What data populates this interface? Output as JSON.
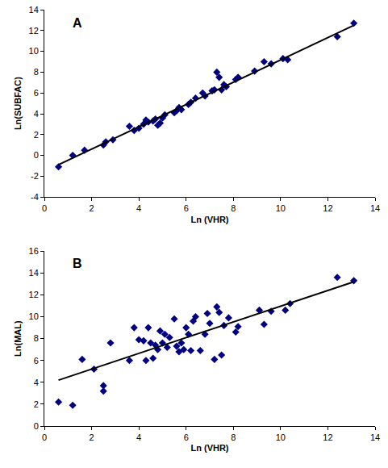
{
  "chart_data": [
    {
      "type": "scatter",
      "title": "A",
      "x_label": "Ln (VHR)",
      "y_label": "Ln(SUBFAC)",
      "xlim": [
        0,
        14
      ],
      "xticks": [
        0,
        2,
        4,
        6,
        8,
        10,
        12,
        14
      ],
      "ylim": [
        -4,
        14
      ],
      "yticks": [
        -4,
        -2,
        0,
        2,
        4,
        6,
        8,
        10,
        12,
        14
      ],
      "grid": false,
      "series": [
        {
          "type": "scatter",
          "marker": "diamond",
          "color": "#000080",
          "x": [
            0.6,
            1.2,
            1.7,
            2.5,
            2.6,
            2.9,
            3.6,
            3.8,
            4.0,
            4.2,
            4.3,
            4.4,
            4.6,
            4.7,
            4.8,
            4.9,
            5.0,
            5.1,
            5.5,
            5.6,
            5.7,
            5.8,
            6.1,
            6.2,
            6.4,
            6.7,
            6.8,
            7.1,
            7.2,
            7.3,
            7.4,
            7.5,
            7.6,
            7.7,
            8.1,
            8.2,
            8.9,
            9.3,
            9.6,
            10.1,
            10.3,
            12.4,
            13.1
          ],
          "values": [
            -1.1,
            0.0,
            0.5,
            1.0,
            1.3,
            1.5,
            2.8,
            2.4,
            2.6,
            3.0,
            3.4,
            3.2,
            3.3,
            3.5,
            2.9,
            3.1,
            3.6,
            3.9,
            4.1,
            4.3,
            4.6,
            4.4,
            4.9,
            5.1,
            5.5,
            6.0,
            5.7,
            6.2,
            6.3,
            8.0,
            7.5,
            6.3,
            6.8,
            6.6,
            7.3,
            7.5,
            8.1,
            9.0,
            8.8,
            9.3,
            9.2,
            11.4,
            12.7
          ]
        },
        {
          "type": "line",
          "line_style": "solid",
          "color": "#000000",
          "x": [
            0.6,
            13.1
          ],
          "values": [
            -0.9,
            12.5
          ]
        }
      ]
    },
    {
      "type": "scatter",
      "title": "B",
      "x_label": "Ln (VHR)",
      "y_label": "Ln(MAL)",
      "xlim": [
        0,
        14
      ],
      "xticks": [
        0,
        2,
        4,
        6,
        8,
        10,
        12,
        14
      ],
      "ylim": [
        0,
        16
      ],
      "yticks": [
        0,
        2,
        4,
        6,
        8,
        10,
        12,
        14,
        16
      ],
      "grid": false,
      "series": [
        {
          "type": "scatter",
          "marker": "diamond",
          "color": "#000080",
          "x": [
            0.6,
            1.2,
            1.6,
            2.1,
            2.5,
            2.5,
            2.8,
            3.6,
            3.8,
            4.0,
            4.2,
            4.3,
            4.4,
            4.5,
            4.6,
            4.7,
            4.8,
            4.9,
            5.0,
            5.1,
            5.2,
            5.3,
            5.5,
            5.6,
            5.7,
            5.8,
            5.9,
            6.0,
            6.1,
            6.2,
            6.3,
            6.4,
            6.6,
            6.8,
            6.9,
            7.0,
            7.2,
            7.3,
            7.4,
            7.5,
            7.6,
            7.8,
            8.1,
            8.2,
            9.1,
            9.3,
            9.6,
            10.2,
            10.4,
            12.4,
            13.1
          ],
          "values": [
            2.2,
            1.9,
            6.1,
            5.2,
            3.7,
            3.2,
            7.6,
            6.0,
            9.0,
            7.9,
            7.8,
            6.0,
            9.0,
            7.6,
            6.2,
            7.4,
            7.0,
            8.7,
            7.6,
            8.4,
            7.2,
            8.1,
            9.8,
            7.3,
            6.8,
            7.6,
            7.0,
            9.0,
            8.4,
            6.9,
            9.6,
            10.0,
            6.9,
            8.4,
            10.3,
            9.4,
            6.1,
            10.9,
            10.4,
            6.5,
            9.2,
            9.9,
            8.6,
            9.1,
            10.6,
            9.3,
            10.5,
            10.6,
            11.2,
            13.6,
            13.3
          ]
        },
        {
          "type": "line",
          "line_style": "solid",
          "color": "#000000",
          "x": [
            0.6,
            13.1
          ],
          "values": [
            4.2,
            13.2
          ]
        }
      ]
    }
  ]
}
